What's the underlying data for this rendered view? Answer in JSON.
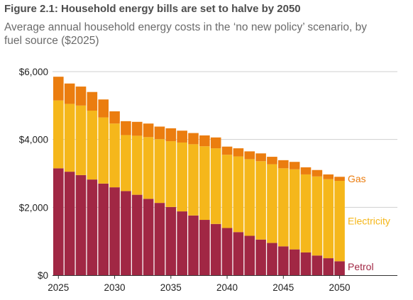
{
  "title": "Figure 2.1: Household energy bills are set to halve by 2050",
  "subtitle": "Average annual household energy costs in the ‘no new policy’ scenario, by fuel source ($2025)",
  "colors": {
    "petrol": "#a12744",
    "electricity": "#f5b71b",
    "gas": "#eb7d0f",
    "grid": "#cfcfcf",
    "axis": "#333333",
    "text": "#222222"
  },
  "chart_data": {
    "type": "bar",
    "stacked": true,
    "title": "Figure 2.1: Household energy bills are set to halve by 2050",
    "subtitle": "Average annual household energy costs in the ‘no new policy’ scenario, by fuel source ($2025)",
    "xlabel": "",
    "ylabel": "",
    "ylim": [
      0,
      6000
    ],
    "yticks": [
      0,
      2000,
      4000,
      6000
    ],
    "ytick_labels": [
      "$0",
      "$2,000",
      "$4,000",
      "$6,000"
    ],
    "xtick_labels": [
      "2025",
      "2030",
      "2035",
      "2040",
      "2045",
      "2050"
    ],
    "grid": true,
    "legend": "direct labels at right",
    "categories": [
      2025,
      2026,
      2027,
      2028,
      2029,
      2030,
      2031,
      2032,
      2033,
      2034,
      2035,
      2036,
      2037,
      2038,
      2039,
      2040,
      2041,
      2042,
      2043,
      2044,
      2045,
      2046,
      2047,
      2048,
      2049,
      2050
    ],
    "series": [
      {
        "name": "Petrol",
        "color": "#a12744",
        "values": [
          3150,
          3050,
          2950,
          2820,
          2700,
          2590,
          2480,
          2370,
          2250,
          2130,
          2010,
          1880,
          1760,
          1630,
          1510,
          1390,
          1270,
          1160,
          1050,
          950,
          850,
          760,
          670,
          580,
          500,
          410
        ]
      },
      {
        "name": "Electricity",
        "color": "#f5b71b",
        "values": [
          2000,
          2000,
          2050,
          2030,
          1950,
          1880,
          1650,
          1740,
          1820,
          1880,
          1940,
          2030,
          2100,
          2170,
          2230,
          2160,
          2230,
          2260,
          2310,
          2320,
          2300,
          2360,
          2300,
          2330,
          2330,
          2370
        ]
      },
      {
        "name": "Gas",
        "color": "#eb7d0f",
        "values": [
          700,
          600,
          560,
          550,
          530,
          360,
          410,
          410,
          400,
          370,
          380,
          350,
          330,
          320,
          320,
          240,
          240,
          230,
          230,
          220,
          240,
          220,
          210,
          190,
          140,
          120
        ]
      }
    ]
  }
}
